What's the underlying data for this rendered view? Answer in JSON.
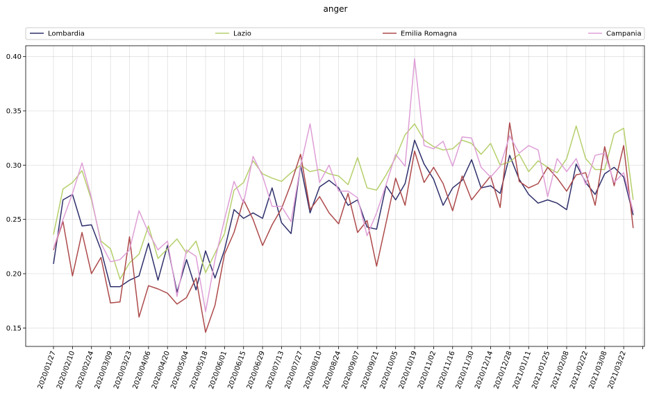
{
  "chart_data": {
    "type": "line",
    "title": "anger",
    "xlabel": "",
    "ylabel": "",
    "ylim": [
      0.133,
      0.41
    ],
    "yticks": [
      0.15,
      0.2,
      0.25,
      0.3,
      0.35,
      0.4
    ],
    "ytick_labels": [
      "0.15",
      "0.20",
      "0.25",
      "0.30",
      "0.35",
      "0.40"
    ],
    "xtick_labels": [
      "2020/01/27",
      "2020/02/10",
      "2020/02/24",
      "2020/03/09",
      "2020/03/23",
      "2020/04/06",
      "2020/04/20",
      "2020/05/04",
      "2020/05/18",
      "2020/06/01",
      "2020/06/15",
      "2020/06/29",
      "2020/07/13",
      "2020/07/27",
      "2020/08/10",
      "2020/08/24",
      "2020/09/07",
      "2020/09/21",
      "2020/10/05",
      "2020/10/19",
      "2020/11/02",
      "2020/11/16",
      "2020/11/30",
      "2020/12/14",
      "2020/12/28",
      "2021/01/11",
      "2021/01/25",
      "2021/02/08",
      "2021/02/22",
      "2021/03/08",
      "2021/03/22"
    ],
    "x_first_date": "2020/01/27",
    "x_step_days": 7,
    "legend_position": "top",
    "grid": true,
    "series": [
      {
        "name": "Lombardia",
        "color": "#2e2f6b",
        "values": [
          0.209,
          0.268,
          0.273,
          0.244,
          0.245,
          0.222,
          0.188,
          0.188,
          0.194,
          0.198,
          0.228,
          0.194,
          0.226,
          0.183,
          0.213,
          0.185,
          0.221,
          0.196,
          0.222,
          0.259,
          0.251,
          0.256,
          0.251,
          0.279,
          0.247,
          0.237,
          0.3,
          0.256,
          0.28,
          0.286,
          0.279,
          0.263,
          0.268,
          0.243,
          0.241,
          0.281,
          0.268,
          0.283,
          0.323,
          0.301,
          0.287,
          0.263,
          0.279,
          0.286,
          0.305,
          0.279,
          0.281,
          0.274,
          0.309,
          0.287,
          0.273,
          0.265,
          0.268,
          0.265,
          0.259,
          0.301,
          0.284,
          0.273,
          0.292,
          0.298,
          0.289,
          0.254
        ]
      },
      {
        "name": "Lazio",
        "color": "#b5cf6b",
        "values": [
          0.236,
          0.278,
          0.284,
          0.295,
          0.268,
          0.23,
          0.223,
          0.195,
          0.21,
          0.218,
          0.244,
          0.214,
          0.223,
          0.232,
          0.219,
          0.23,
          0.201,
          0.219,
          0.237,
          0.277,
          0.284,
          0.304,
          0.292,
          0.288,
          0.285,
          0.293,
          0.3,
          0.294,
          0.296,
          0.292,
          0.29,
          0.282,
          0.307,
          0.279,
          0.277,
          0.291,
          0.307,
          0.328,
          0.338,
          0.323,
          0.317,
          0.314,
          0.315,
          0.323,
          0.32,
          0.31,
          0.32,
          0.3,
          0.303,
          0.31,
          0.294,
          0.304,
          0.298,
          0.293,
          0.306,
          0.336,
          0.306,
          0.296,
          0.296,
          0.329,
          0.334,
          0.268
        ]
      },
      {
        "name": "Emilia Romagna",
        "color": "#ad494a",
        "values": [
          0.222,
          0.248,
          0.198,
          0.238,
          0.2,
          0.215,
          0.173,
          0.174,
          0.234,
          0.16,
          0.189,
          0.186,
          0.182,
          0.172,
          0.178,
          0.196,
          0.146,
          0.171,
          0.218,
          0.238,
          0.268,
          0.25,
          0.226,
          0.245,
          0.26,
          0.283,
          0.31,
          0.259,
          0.271,
          0.256,
          0.246,
          0.274,
          0.238,
          0.249,
          0.207,
          0.247,
          0.288,
          0.263,
          0.313,
          0.284,
          0.298,
          0.283,
          0.258,
          0.29,
          0.268,
          0.279,
          0.29,
          0.261,
          0.339,
          0.285,
          0.279,
          0.283,
          0.298,
          0.288,
          0.276,
          0.291,
          0.293,
          0.263,
          0.317,
          0.281,
          0.318,
          0.242
        ]
      },
      {
        "name": "Campania",
        "color": "#de9ed6",
        "values": [
          0.223,
          0.25,
          0.274,
          0.302,
          0.27,
          0.228,
          0.211,
          0.213,
          0.222,
          0.258,
          0.238,
          0.222,
          0.23,
          0.179,
          0.222,
          0.216,
          0.165,
          0.213,
          0.25,
          0.285,
          0.265,
          0.308,
          0.29,
          0.262,
          0.262,
          0.248,
          0.299,
          0.338,
          0.284,
          0.3,
          0.276,
          0.276,
          0.27,
          0.235,
          0.256,
          0.282,
          0.31,
          0.299,
          0.398,
          0.318,
          0.315,
          0.322,
          0.299,
          0.326,
          0.325,
          0.298,
          0.289,
          0.299,
          0.327,
          0.311,
          0.318,
          0.314,
          0.271,
          0.306,
          0.294,
          0.306,
          0.282,
          0.309,
          0.311,
          0.284,
          0.293,
          0.257
        ]
      }
    ]
  }
}
